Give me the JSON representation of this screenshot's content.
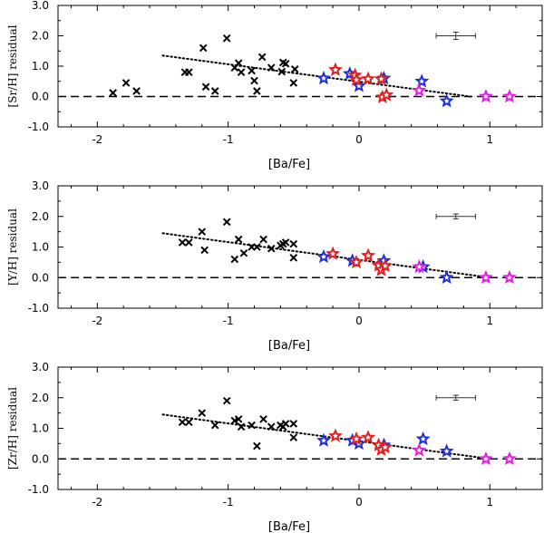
{
  "chart_data": [
    {
      "type": "scatter",
      "ylabel": "[Sr/H] residual",
      "xlabel": "[Ba/Fe]",
      "xlim": [
        -2.3,
        1.4
      ],
      "ylim": [
        -1.0,
        3.0
      ],
      "xticks": [
        -2,
        -1,
        0,
        1
      ],
      "xtick_labels": [
        "-2",
        "-1",
        "0",
        "1"
      ],
      "yticks": [
        -1,
        0,
        1,
        2,
        3
      ],
      "ytick_labels": [
        "-1.0",
        "0.0",
        "1.0",
        "2.0",
        "3.0"
      ],
      "trend": {
        "from": [
          -1.5,
          1.35
        ],
        "to": [
          0.85,
          0.0
        ],
        "style": "dotted"
      },
      "zero_line": {
        "y": 0.0,
        "style": "dashed"
      },
      "error_bar": {
        "x": 0.74,
        "y": 2.0,
        "xerr": 0.15,
        "yerr": 0.12
      },
      "series": [
        {
          "name": "cross",
          "marker": "x",
          "color": "#000000",
          "points": [
            [
              -1.88,
              0.12
            ],
            [
              -1.78,
              0.45
            ],
            [
              -1.7,
              0.18
            ],
            [
              -1.33,
              0.8
            ],
            [
              -1.3,
              0.8
            ],
            [
              -1.19,
              1.6
            ],
            [
              -1.17,
              0.32
            ],
            [
              -1.1,
              0.18
            ],
            [
              -1.01,
              1.92
            ],
            [
              -0.95,
              0.95
            ],
            [
              -0.92,
              1.1
            ],
            [
              -0.9,
              0.8
            ],
            [
              -0.82,
              0.85
            ],
            [
              -0.8,
              0.52
            ],
            [
              -0.78,
              0.18
            ],
            [
              -0.74,
              1.3
            ],
            [
              -0.67,
              0.95
            ],
            [
              -0.59,
              0.82
            ],
            [
              -0.58,
              1.12
            ],
            [
              -0.56,
              1.08
            ],
            [
              -0.5,
              0.45
            ],
            [
              -0.49,
              0.9
            ]
          ]
        },
        {
          "name": "blue",
          "marker": "star",
          "color": "#1f2fd6",
          "points": [
            [
              -0.27,
              0.6
            ],
            [
              -0.07,
              0.75
            ],
            [
              0.0,
              0.35
            ],
            [
              0.19,
              0.6
            ],
            [
              0.48,
              0.5
            ],
            [
              0.67,
              -0.15
            ]
          ]
        },
        {
          "name": "red",
          "marker": "star",
          "color": "#e02020",
          "points": [
            [
              -0.18,
              0.88
            ],
            [
              -0.03,
              0.7
            ],
            [
              -0.02,
              0.55
            ],
            [
              0.07,
              0.58
            ],
            [
              0.17,
              0.58
            ],
            [
              0.18,
              -0.02
            ],
            [
              0.21,
              0.05
            ]
          ]
        },
        {
          "name": "magenta",
          "marker": "star",
          "color": "#e020e0",
          "points": [
            [
              0.46,
              0.2
            ],
            [
              0.97,
              0.0
            ],
            [
              1.15,
              0.0
            ]
          ]
        }
      ]
    },
    {
      "type": "scatter",
      "ylabel": "[Y/H] residual",
      "xlabel": "[Ba/Fe]",
      "xlim": [
        -2.3,
        1.4
      ],
      "ylim": [
        -1.0,
        3.0
      ],
      "xticks": [
        -2,
        -1,
        0,
        1
      ],
      "xtick_labels": [
        "-2",
        "-1",
        "0",
        "1"
      ],
      "yticks": [
        -1,
        0,
        1,
        2,
        3
      ],
      "ytick_labels": [
        "-1.0",
        "0.0",
        "1.0",
        "2.0",
        "3.0"
      ],
      "trend": {
        "from": [
          -1.5,
          1.45
        ],
        "to": [
          1.0,
          0.0
        ],
        "style": "dotted"
      },
      "zero_line": {
        "y": 0.0,
        "style": "dashed"
      },
      "error_bar": {
        "x": 0.74,
        "y": 2.0,
        "xerr": 0.15,
        "yerr": 0.08
      },
      "series": [
        {
          "name": "cross",
          "marker": "x",
          "color": "#000000",
          "points": [
            [
              -1.35,
              1.15
            ],
            [
              -1.3,
              1.15
            ],
            [
              -1.2,
              1.5
            ],
            [
              -1.18,
              0.9
            ],
            [
              -1.01,
              1.82
            ],
            [
              -0.95,
              0.6
            ],
            [
              -0.92,
              1.25
            ],
            [
              -0.88,
              0.8
            ],
            [
              -0.82,
              1.0
            ],
            [
              -0.78,
              1.0
            ],
            [
              -0.73,
              1.25
            ],
            [
              -0.67,
              0.95
            ],
            [
              -0.6,
              1.05
            ],
            [
              -0.58,
              1.1
            ],
            [
              -0.56,
              1.15
            ],
            [
              -0.5,
              1.1
            ],
            [
              -0.5,
              0.65
            ]
          ]
        },
        {
          "name": "blue",
          "marker": "star",
          "color": "#1f2fd6",
          "points": [
            [
              -0.27,
              0.68
            ],
            [
              -0.05,
              0.55
            ],
            [
              0.19,
              0.55
            ],
            [
              0.49,
              0.35
            ],
            [
              0.67,
              0.0
            ]
          ]
        },
        {
          "name": "red",
          "marker": "star",
          "color": "#e02020",
          "points": [
            [
              -0.2,
              0.78
            ],
            [
              -0.02,
              0.5
            ],
            [
              0.07,
              0.72
            ],
            [
              0.15,
              0.4
            ],
            [
              0.17,
              0.25
            ],
            [
              0.2,
              0.38
            ]
          ]
        },
        {
          "name": "magenta",
          "marker": "star",
          "color": "#e020e0",
          "points": [
            [
              0.46,
              0.35
            ],
            [
              0.97,
              0.0
            ],
            [
              1.15,
              0.0
            ]
          ]
        }
      ]
    },
    {
      "type": "scatter",
      "ylabel": "[Zr/H] residual",
      "xlabel": "[Ba/Fe]",
      "xlim": [
        -2.3,
        1.4
      ],
      "ylim": [
        -1.0,
        3.0
      ],
      "xticks": [
        -2,
        -1,
        0,
        1
      ],
      "xtick_labels": [
        "-2",
        "-1",
        "0",
        "1"
      ],
      "yticks": [
        -1,
        0,
        1,
        2,
        3
      ],
      "ytick_labels": [
        "-1.0",
        "0.0",
        "1.0",
        "2.0",
        "3.0"
      ],
      "trend": {
        "from": [
          -1.5,
          1.45
        ],
        "to": [
          1.0,
          0.0
        ],
        "style": "dotted"
      },
      "zero_line": {
        "y": 0.0,
        "style": "dashed"
      },
      "error_bar": {
        "x": 0.74,
        "y": 2.0,
        "xerr": 0.15,
        "yerr": 0.08
      },
      "series": [
        {
          "name": "cross",
          "marker": "x",
          "color": "#000000",
          "points": [
            [
              -1.35,
              1.2
            ],
            [
              -1.3,
              1.2
            ],
            [
              -1.2,
              1.5
            ],
            [
              -1.1,
              1.1
            ],
            [
              -1.01,
              1.9
            ],
            [
              -0.95,
              1.25
            ],
            [
              -0.92,
              1.3
            ],
            [
              -0.9,
              1.05
            ],
            [
              -0.82,
              1.1
            ],
            [
              -0.78,
              0.42
            ],
            [
              -0.73,
              1.3
            ],
            [
              -0.67,
              1.05
            ],
            [
              -0.6,
              1.1
            ],
            [
              -0.58,
              1.05
            ],
            [
              -0.56,
              1.15
            ],
            [
              -0.5,
              1.15
            ],
            [
              -0.5,
              0.7
            ]
          ]
        },
        {
          "name": "blue",
          "marker": "star",
          "color": "#1f2fd6",
          "points": [
            [
              -0.27,
              0.6
            ],
            [
              -0.05,
              0.6
            ],
            [
              0.0,
              0.5
            ],
            [
              0.19,
              0.45
            ],
            [
              0.49,
              0.65
            ],
            [
              0.67,
              0.25
            ]
          ]
        },
        {
          "name": "red",
          "marker": "star",
          "color": "#e02020",
          "points": [
            [
              -0.18,
              0.75
            ],
            [
              -0.02,
              0.65
            ],
            [
              0.07,
              0.7
            ],
            [
              0.15,
              0.45
            ],
            [
              0.17,
              0.3
            ],
            [
              0.2,
              0.38
            ]
          ]
        },
        {
          "name": "magenta",
          "marker": "star",
          "color": "#e020e0",
          "points": [
            [
              0.46,
              0.28
            ],
            [
              0.97,
              0.0
            ],
            [
              1.15,
              0.0
            ]
          ]
        }
      ]
    }
  ]
}
